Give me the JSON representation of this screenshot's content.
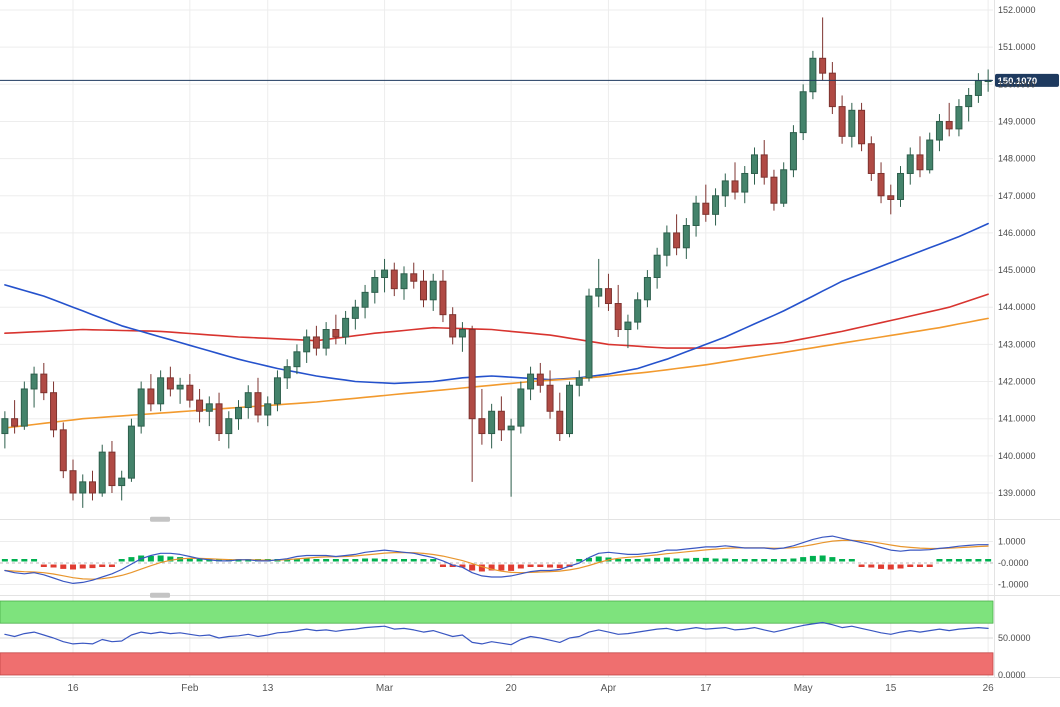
{
  "colors": {
    "bull_fill": "#44836b",
    "bull_stroke": "#2d5f4c",
    "bear_fill": "#b04a44",
    "bear_stroke": "#7e332f",
    "ma_red": "#d8342f",
    "ma_blue": "#2552cc",
    "ma_orange": "#f29a2e",
    "price_line": "#1e3a5f",
    "hist_pos": "#00b050",
    "hist_neg": "#e03c31",
    "macd_line": "#3a57c2",
    "macd_signal": "#e8962e",
    "rsi_line": "#3a57c2",
    "band_green": "#7ee37d",
    "band_red": "#ef6f6f",
    "grid": "#ededed",
    "axis_text": "#4a4a4a"
  },
  "chart_data": {
    "type": "candlestick",
    "legend_position": "none",
    "grid": true,
    "main": {
      "axis_labels": [
        "152.0000",
        "151.0000",
        "150.0000",
        "149.0000",
        "148.0000",
        "147.0000",
        "146.0000",
        "145.0000",
        "144.0000",
        "143.0000",
        "142.0000",
        "141.0000",
        "140.0000",
        "139.0000"
      ],
      "last_price": 150.107,
      "last_price_label": "150.1070",
      "candles": [
        [
          140.6,
          141.2,
          140.2,
          141.0
        ],
        [
          141.0,
          141.5,
          140.6,
          140.8
        ],
        [
          140.8,
          142.0,
          140.7,
          141.8
        ],
        [
          141.8,
          142.4,
          141.3,
          142.2
        ],
        [
          142.2,
          142.5,
          141.5,
          141.7
        ],
        [
          141.7,
          142.0,
          140.5,
          140.7
        ],
        [
          140.7,
          140.9,
          139.4,
          139.6
        ],
        [
          139.6,
          139.9,
          138.8,
          139.0
        ],
        [
          139.0,
          139.5,
          138.6,
          139.3
        ],
        [
          139.3,
          139.6,
          138.8,
          139.0
        ],
        [
          139.0,
          140.3,
          138.9,
          140.1
        ],
        [
          140.1,
          140.4,
          139.0,
          139.2
        ],
        [
          139.2,
          139.6,
          138.8,
          139.4
        ],
        [
          139.4,
          141.0,
          139.3,
          140.8
        ],
        [
          140.8,
          142.0,
          140.6,
          141.8
        ],
        [
          141.8,
          142.2,
          141.2,
          141.4
        ],
        [
          141.4,
          142.3,
          141.2,
          142.1
        ],
        [
          142.1,
          142.4,
          141.6,
          141.8
        ],
        [
          141.8,
          142.1,
          141.4,
          141.9
        ],
        [
          141.9,
          142.2,
          141.3,
          141.5
        ],
        [
          141.5,
          141.8,
          140.9,
          141.2
        ],
        [
          141.2,
          141.6,
          140.8,
          141.4
        ],
        [
          141.4,
          141.7,
          140.4,
          140.6
        ],
        [
          140.6,
          141.2,
          140.2,
          141.0
        ],
        [
          141.0,
          141.5,
          140.7,
          141.3
        ],
        [
          141.3,
          141.9,
          141.0,
          141.7
        ],
        [
          141.7,
          142.1,
          140.9,
          141.1
        ],
        [
          141.1,
          141.6,
          140.8,
          141.4
        ],
        [
          141.4,
          142.3,
          141.2,
          142.1
        ],
        [
          142.1,
          142.6,
          141.8,
          142.4
        ],
        [
          142.4,
          143.0,
          142.2,
          142.8
        ],
        [
          142.8,
          143.4,
          142.5,
          143.2
        ],
        [
          143.2,
          143.5,
          142.7,
          142.9
        ],
        [
          142.9,
          143.6,
          142.7,
          143.4
        ],
        [
          143.4,
          143.8,
          143.0,
          143.2
        ],
        [
          143.2,
          143.9,
          143.0,
          143.7
        ],
        [
          143.7,
          144.2,
          143.4,
          144.0
        ],
        [
          144.0,
          144.6,
          143.7,
          144.4
        ],
        [
          144.4,
          145.0,
          144.1,
          144.8
        ],
        [
          144.8,
          145.3,
          144.4,
          145.0
        ],
        [
          145.0,
          145.2,
          144.3,
          144.5
        ],
        [
          144.5,
          145.1,
          144.2,
          144.9
        ],
        [
          144.9,
          145.2,
          144.5,
          144.7
        ],
        [
          144.7,
          145.0,
          144.0,
          144.2
        ],
        [
          144.2,
          144.9,
          143.9,
          144.7
        ],
        [
          144.7,
          145.0,
          143.6,
          143.8
        ],
        [
          143.8,
          144.0,
          143.0,
          143.2
        ],
        [
          143.2,
          143.6,
          142.8,
          143.4
        ],
        [
          143.4,
          143.5,
          139.3,
          141.0
        ],
        [
          141.0,
          141.8,
          140.3,
          140.6
        ],
        [
          140.6,
          141.4,
          140.2,
          141.2
        ],
        [
          141.2,
          141.6,
          140.4,
          140.7
        ],
        [
          140.7,
          141.0,
          138.9,
          140.8
        ],
        [
          140.8,
          142.0,
          140.6,
          141.8
        ],
        [
          141.8,
          142.4,
          141.5,
          142.2
        ],
        [
          142.2,
          142.5,
          141.7,
          141.9
        ],
        [
          141.9,
          142.3,
          141.0,
          141.2
        ],
        [
          141.2,
          141.7,
          140.4,
          140.6
        ],
        [
          140.6,
          142.0,
          140.5,
          141.9
        ],
        [
          141.9,
          142.3,
          141.6,
          142.1
        ],
        [
          142.1,
          144.5,
          142.0,
          144.3
        ],
        [
          144.3,
          145.3,
          144.0,
          144.5
        ],
        [
          144.5,
          144.9,
          143.9,
          144.1
        ],
        [
          144.1,
          144.6,
          143.2,
          143.4
        ],
        [
          143.4,
          143.8,
          142.9,
          143.6
        ],
        [
          143.6,
          144.4,
          143.4,
          144.2
        ],
        [
          144.2,
          145.0,
          144.0,
          144.8
        ],
        [
          144.8,
          145.6,
          144.5,
          145.4
        ],
        [
          145.4,
          146.2,
          145.1,
          146.0
        ],
        [
          146.0,
          146.5,
          145.4,
          145.6
        ],
        [
          145.6,
          146.4,
          145.3,
          146.2
        ],
        [
          146.2,
          147.0,
          145.9,
          146.8
        ],
        [
          146.8,
          147.3,
          146.3,
          146.5
        ],
        [
          146.5,
          147.2,
          146.2,
          147.0
        ],
        [
          147.0,
          147.6,
          146.7,
          147.4
        ],
        [
          147.4,
          147.9,
          146.9,
          147.1
        ],
        [
          147.1,
          147.8,
          146.8,
          147.6
        ],
        [
          147.6,
          148.3,
          147.3,
          148.1
        ],
        [
          148.1,
          148.5,
          147.3,
          147.5
        ],
        [
          147.5,
          147.7,
          146.6,
          146.8
        ],
        [
          146.8,
          147.9,
          146.7,
          147.7
        ],
        [
          147.7,
          148.9,
          147.5,
          148.7
        ],
        [
          148.7,
          150.0,
          148.5,
          149.8
        ],
        [
          149.8,
          150.9,
          149.6,
          150.7
        ],
        [
          150.7,
          151.8,
          150.1,
          150.3
        ],
        [
          150.3,
          150.6,
          149.2,
          149.4
        ],
        [
          149.4,
          149.7,
          148.4,
          148.6
        ],
        [
          148.6,
          149.5,
          148.3,
          149.3
        ],
        [
          149.3,
          149.5,
          148.2,
          148.4
        ],
        [
          148.4,
          148.6,
          147.4,
          147.6
        ],
        [
          147.6,
          147.9,
          146.8,
          147.0
        ],
        [
          147.0,
          147.3,
          146.5,
          146.9
        ],
        [
          146.9,
          147.8,
          146.7,
          147.6
        ],
        [
          147.6,
          148.3,
          147.3,
          148.1
        ],
        [
          148.1,
          148.6,
          147.5,
          147.7
        ],
        [
          147.7,
          148.7,
          147.6,
          148.5
        ],
        [
          148.5,
          149.2,
          148.2,
          149.0
        ],
        [
          149.0,
          149.5,
          148.6,
          148.8
        ],
        [
          148.8,
          149.6,
          148.6,
          149.4
        ],
        [
          149.4,
          149.9,
          149.0,
          149.7
        ],
        [
          149.7,
          150.3,
          149.5,
          150.1
        ],
        [
          150.1,
          150.4,
          149.8,
          150.107
        ]
      ],
      "moving_averages": [
        {
          "name": "ma-red",
          "color": "#d8342f",
          "points": [
            [
              0,
              143.3
            ],
            [
              8,
              143.4
            ],
            [
              16,
              143.35
            ],
            [
              24,
              143.2
            ],
            [
              32,
              143.1
            ],
            [
              38,
              143.3
            ],
            [
              44,
              143.45
            ],
            [
              50,
              143.4
            ],
            [
              56,
              143.25
            ],
            [
              62,
              143.0
            ],
            [
              68,
              142.9
            ],
            [
              74,
              142.9
            ],
            [
              80,
              143.05
            ],
            [
              86,
              143.35
            ],
            [
              92,
              143.7
            ],
            [
              97,
              144.0
            ],
            [
              101,
              144.35
            ]
          ]
        },
        {
          "name": "ma-blue",
          "color": "#2552cc",
          "points": [
            [
              0,
              144.6
            ],
            [
              4,
              144.3
            ],
            [
              8,
              143.9
            ],
            [
              12,
              143.5
            ],
            [
              16,
              143.2
            ],
            [
              20,
              142.9
            ],
            [
              24,
              142.6
            ],
            [
              28,
              142.35
            ],
            [
              32,
              142.15
            ],
            [
              36,
              142.0
            ],
            [
              40,
              141.95
            ],
            [
              44,
              142.0
            ],
            [
              47,
              142.1
            ],
            [
              50,
              142.15
            ],
            [
              53,
              142.1
            ],
            [
              56,
              142.05
            ],
            [
              59,
              142.1
            ],
            [
              62,
              142.2
            ],
            [
              65,
              142.35
            ],
            [
              68,
              142.6
            ],
            [
              71,
              142.9
            ],
            [
              74,
              143.2
            ],
            [
              77,
              143.55
            ],
            [
              80,
              143.9
            ],
            [
              83,
              144.3
            ],
            [
              86,
              144.7
            ],
            [
              89,
              145.0
            ],
            [
              92,
              145.3
            ],
            [
              95,
              145.6
            ],
            [
              98,
              145.9
            ],
            [
              101,
              146.25
            ]
          ]
        },
        {
          "name": "ma-orange",
          "color": "#f29a2e",
          "points": [
            [
              0,
              140.75
            ],
            [
              8,
              141.0
            ],
            [
              16,
              141.15
            ],
            [
              24,
              141.3
            ],
            [
              32,
              141.45
            ],
            [
              40,
              141.65
            ],
            [
              48,
              141.85
            ],
            [
              54,
              142.0
            ],
            [
              60,
              142.1
            ],
            [
              66,
              142.25
            ],
            [
              72,
              142.45
            ],
            [
              78,
              142.7
            ],
            [
              84,
              142.95
            ],
            [
              90,
              143.2
            ],
            [
              96,
              143.45
            ],
            [
              101,
              143.7
            ]
          ]
        }
      ]
    },
    "macd": {
      "axis_labels": [
        "1.0000",
        "-0.0000",
        "-1.0000"
      ],
      "line": [
        -0.35,
        -0.45,
        -0.5,
        -0.45,
        -0.55,
        -0.7,
        -0.85,
        -0.95,
        -0.9,
        -0.8,
        -0.65,
        -0.5,
        -0.3,
        -0.05,
        0.2,
        0.35,
        0.45,
        0.45,
        0.4,
        0.3,
        0.2,
        0.15,
        0.1,
        0.1,
        0.15,
        0.15,
        0.1,
        0.1,
        0.15,
        0.2,
        0.3,
        0.35,
        0.35,
        0.35,
        0.3,
        0.35,
        0.4,
        0.5,
        0.55,
        0.6,
        0.55,
        0.5,
        0.45,
        0.35,
        0.25,
        0.1,
        -0.1,
        -0.2,
        -0.45,
        -0.6,
        -0.65,
        -0.65,
        -0.6,
        -0.5,
        -0.4,
        -0.35,
        -0.35,
        -0.3,
        -0.15,
        0.0,
        0.25,
        0.45,
        0.5,
        0.45,
        0.4,
        0.4,
        0.45,
        0.5,
        0.6,
        0.6,
        0.65,
        0.7,
        0.75,
        0.75,
        0.8,
        0.75,
        0.7,
        0.7,
        0.7,
        0.65,
        0.7,
        0.8,
        0.95,
        1.1,
        1.2,
        1.25,
        1.15,
        1.05,
        0.95,
        0.85,
        0.72,
        0.6,
        0.55,
        0.6,
        0.6,
        0.62,
        0.68,
        0.72,
        0.78,
        0.82,
        0.85,
        0.85
      ],
      "histogram": [
        0.08,
        0.05,
        0.08,
        0.04,
        -0.08,
        -0.15,
        -0.22,
        -0.25,
        -0.2,
        -0.18,
        -0.1,
        -0.12,
        0.1,
        0.22,
        0.3,
        0.28,
        0.3,
        0.25,
        0.22,
        0.18,
        0.12,
        0.1,
        0.06,
        0.08,
        0.1,
        0.1,
        0.06,
        0.06,
        0.1,
        0.12,
        0.15,
        0.15,
        0.1,
        0.12,
        0.08,
        0.1,
        0.12,
        0.15,
        0.15,
        0.12,
        0.08,
        0.08,
        0.05,
        0.04,
        0.04,
        -0.04,
        -0.12,
        -0.15,
        -0.3,
        -0.35,
        -0.3,
        -0.3,
        -0.32,
        -0.2,
        -0.12,
        -0.1,
        -0.15,
        -0.18,
        -0.08,
        0.05,
        0.18,
        0.25,
        0.2,
        0.12,
        0.1,
        0.12,
        0.15,
        0.18,
        0.2,
        0.15,
        0.15,
        0.18,
        0.18,
        0.15,
        0.15,
        0.12,
        0.1,
        0.12,
        0.1,
        0.06,
        0.1,
        0.15,
        0.22,
        0.28,
        0.3,
        0.22,
        0.1,
        0.05,
        -0.08,
        -0.15,
        -0.22,
        -0.25,
        -0.2,
        -0.12,
        -0.12,
        -0.08,
        0.04,
        0.03,
        0.05,
        0.05,
        0.06,
        0.04
      ]
    },
    "oscillator": {
      "axis_labels": [
        "50.0000",
        "0.0000"
      ],
      "overbought_band": [
        70,
        100
      ],
      "oversold_band": [
        0,
        30
      ],
      "values": [
        55,
        52,
        56,
        58,
        54,
        50,
        45,
        42,
        43,
        42,
        48,
        45,
        46,
        54,
        58,
        56,
        58,
        56,
        57,
        55,
        53,
        54,
        50,
        52,
        53,
        55,
        52,
        54,
        57,
        58,
        60,
        62,
        60,
        61,
        59,
        61,
        62,
        64,
        65,
        66,
        62,
        63,
        61,
        58,
        60,
        56,
        52,
        54,
        44,
        42,
        45,
        43,
        41,
        48,
        52,
        50,
        47,
        44,
        50,
        52,
        58,
        61,
        58,
        55,
        56,
        58,
        60,
        62,
        63,
        60,
        62,
        64,
        62,
        63,
        64,
        61,
        62,
        64,
        61,
        58,
        61,
        64,
        67,
        69,
        71,
        68,
        64,
        66,
        63,
        60,
        57,
        55,
        58,
        60,
        58,
        60,
        62,
        60,
        62,
        63,
        64,
        63
      ]
    },
    "x_ticks": [
      {
        "label": "16",
        "i": 7
      },
      {
        "label": "Feb",
        "i": 19
      },
      {
        "label": "13",
        "i": 27
      },
      {
        "label": "Mar",
        "i": 39
      },
      {
        "label": "20",
        "i": 52
      },
      {
        "label": "Apr",
        "i": 62
      },
      {
        "label": "17",
        "i": 72
      },
      {
        "label": "May",
        "i": 82
      },
      {
        "label": "15",
        "i": 91
      },
      {
        "label": "26",
        "i": 101
      }
    ]
  }
}
